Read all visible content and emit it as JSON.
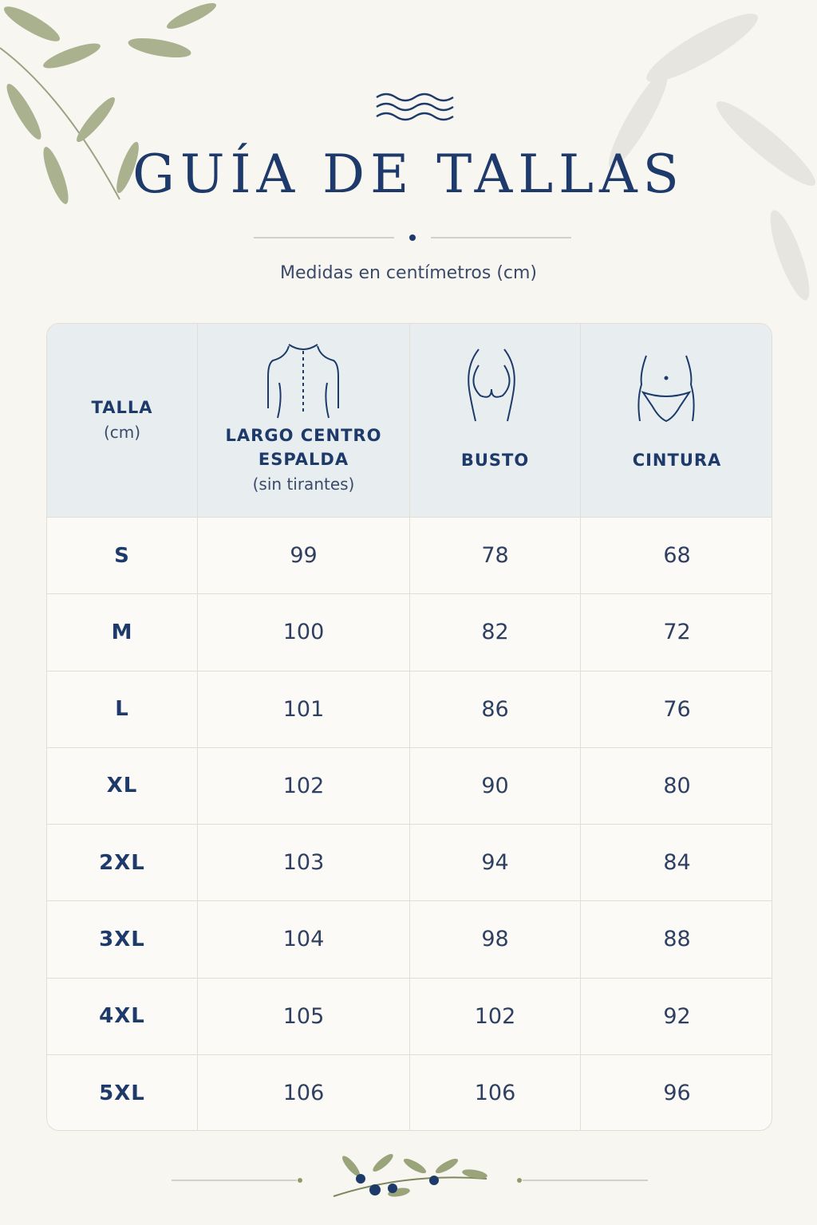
{
  "header": {
    "title": "GUÍA DE TALLAS",
    "subtitle": "Medidas en centímetros (cm)"
  },
  "table": {
    "columns": [
      {
        "label": "TALLA",
        "sublabel": "(cm)"
      },
      {
        "label": "LARGO CENTRO ESPALDA",
        "sublabel": "(sin tirantes)"
      },
      {
        "label": "BUSTO"
      },
      {
        "label": "CINTURA"
      }
    ],
    "rows": [
      [
        "S",
        99,
        78,
        68
      ],
      [
        "M",
        100,
        82,
        72
      ],
      [
        "L",
        101,
        86,
        76
      ],
      [
        "XL",
        102,
        90,
        80
      ],
      [
        "2XL",
        103,
        94,
        84
      ],
      [
        "3XL",
        104,
        98,
        88
      ],
      [
        "4XL",
        105,
        102,
        92
      ],
      [
        "5XL",
        106,
        106,
        96
      ]
    ]
  }
}
